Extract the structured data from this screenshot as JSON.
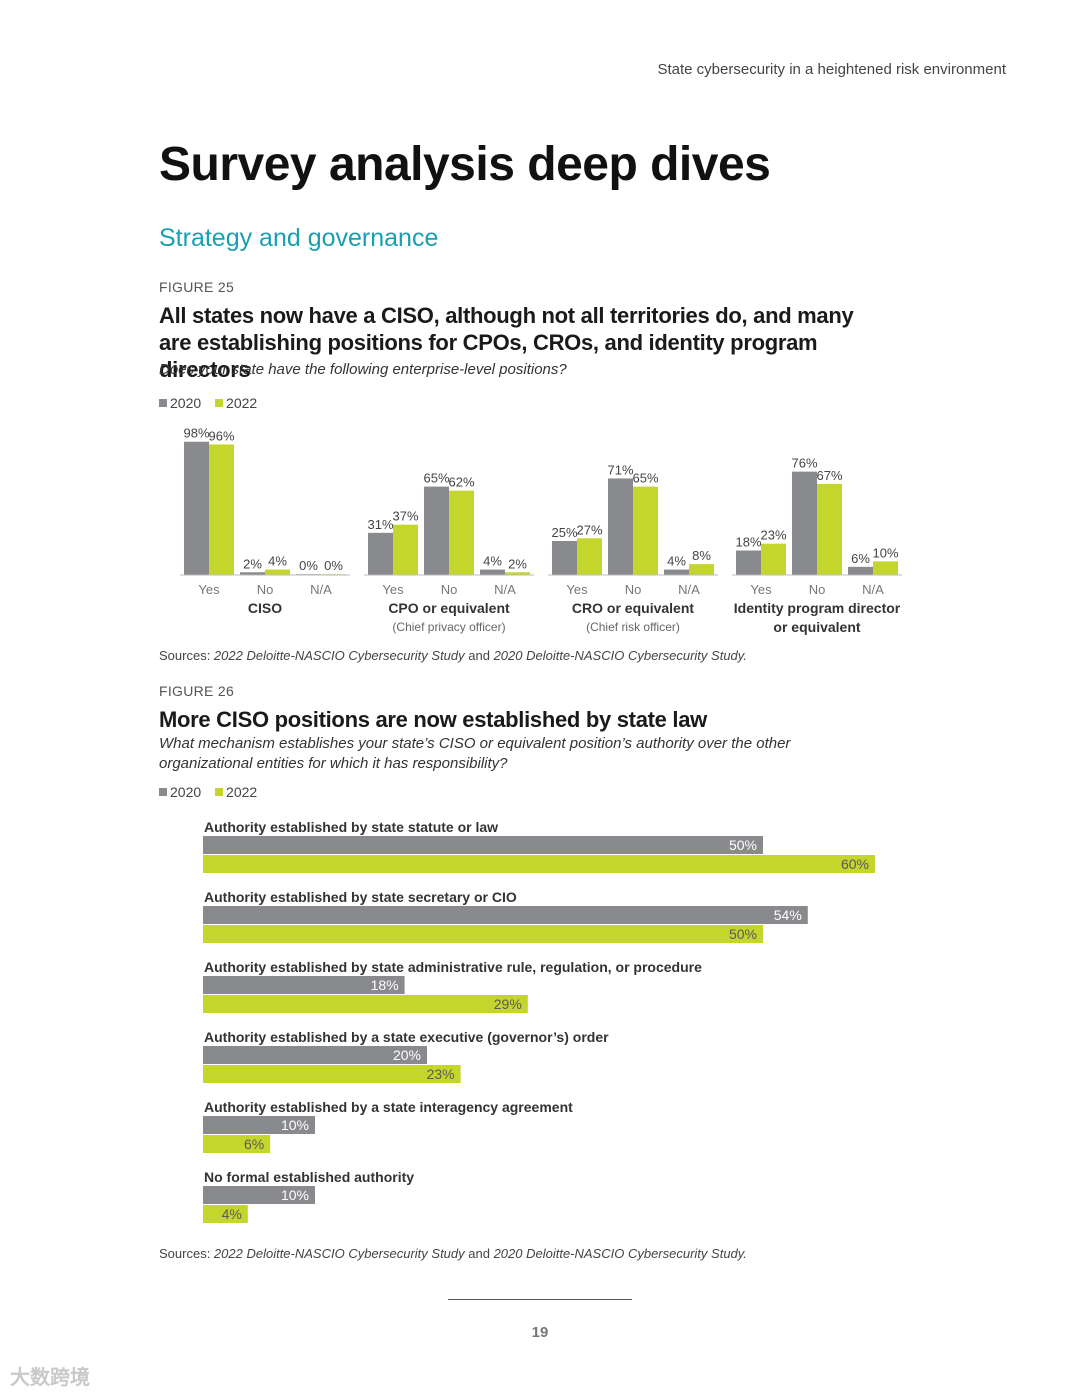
{
  "running_head": "State cybersecurity in a heightened risk environment",
  "page_title": "Survey analysis deep dives",
  "section_title": "Strategy and governance",
  "figure25": {
    "label": "FIGURE 25",
    "title": "All states now have a CISO, although not all territories do, and many are establishing positions for CPOs, CROs, and identity program directors",
    "subtitle": "Does your state have the following enterprise-level positions?",
    "legend": [
      "2020",
      "2022"
    ],
    "source_prefix": "Sources: ",
    "source_study_2022": "2022 Deloitte-NASCIO Cybersecurity Study",
    "source_and": " and ",
    "source_study_2020": "2020 Deloitte-NASCIO Cybersecurity Study."
  },
  "figure26": {
    "label": "FIGURE 26",
    "title": "More CISO positions are now established by state law",
    "subtitle": "What mechanism establishes your state’s CISO or equivalent position’s authority over the other organizational entities for which it has responsibility?",
    "legend": [
      "2020",
      "2022"
    ],
    "source_prefix": "Sources: ",
    "source_study_2022": "2022 Deloitte-NASCIO Cybersecurity Study",
    "source_and": " and ",
    "source_study_2020": "2020 Deloitte-NASCIO Cybersecurity Study."
  },
  "page_number": "19",
  "watermark": "大数跨境",
  "colors": {
    "y2020": "#898a8d",
    "y2022": "#c4d52c",
    "accent": "#1a9fb0"
  },
  "chart_data": [
    {
      "type": "bar",
      "title": "All states now have a CISO, although not all territories do, and many are establishing positions for CPOs, CROs, and identity program directors",
      "ylim": [
        0,
        100
      ],
      "series_names": [
        "2020",
        "2022"
      ],
      "groups": [
        {
          "label": "CISO",
          "label_lines": [
            "CISO"
          ],
          "sublabel": "",
          "categories": [
            "Yes",
            "No",
            "N/A"
          ],
          "values2020": [
            98,
            2,
            0
          ],
          "values2022": [
            96,
            4,
            0
          ]
        },
        {
          "label": "CPO or equivalent",
          "label_lines": [
            "CPO or equivalent"
          ],
          "sublabel": "(Chief privacy officer)",
          "categories": [
            "Yes",
            "No",
            "N/A"
          ],
          "values2020": [
            31,
            65,
            4
          ],
          "values2022": [
            37,
            62,
            2
          ]
        },
        {
          "label": "CRO or equivalent",
          "label_lines": [
            "CRO or equivalent"
          ],
          "sublabel": "(Chief risk officer)",
          "categories": [
            "Yes",
            "No",
            "N/A"
          ],
          "values2020": [
            25,
            71,
            4
          ],
          "values2022": [
            27,
            65,
            8
          ]
        },
        {
          "label": "Identity program director or equivalent",
          "label_lines": [
            "Identity program director",
            "or equivalent"
          ],
          "sublabel": "",
          "categories": [
            "Yes",
            "No",
            "N/A"
          ],
          "values2020": [
            18,
            76,
            6
          ],
          "values2022": [
            23,
            67,
            10
          ]
        }
      ]
    },
    {
      "type": "bar",
      "orientation": "horizontal",
      "title": "More CISO positions are now established by state law",
      "xlim": [
        0,
        60
      ],
      "series_names": [
        "2020",
        "2022"
      ],
      "categories": [
        "Authority established by state statute or law",
        "Authority established by state secretary or CIO",
        "Authority established by state administrative rule, regulation, or procedure",
        "Authority established by a state executive (governor’s) order",
        "Authority established by a state interagency agreement",
        "No formal established authority"
      ],
      "values2020": [
        50,
        54,
        18,
        20,
        10,
        10
      ],
      "values2022": [
        60,
        50,
        29,
        23,
        6,
        4
      ]
    }
  ]
}
